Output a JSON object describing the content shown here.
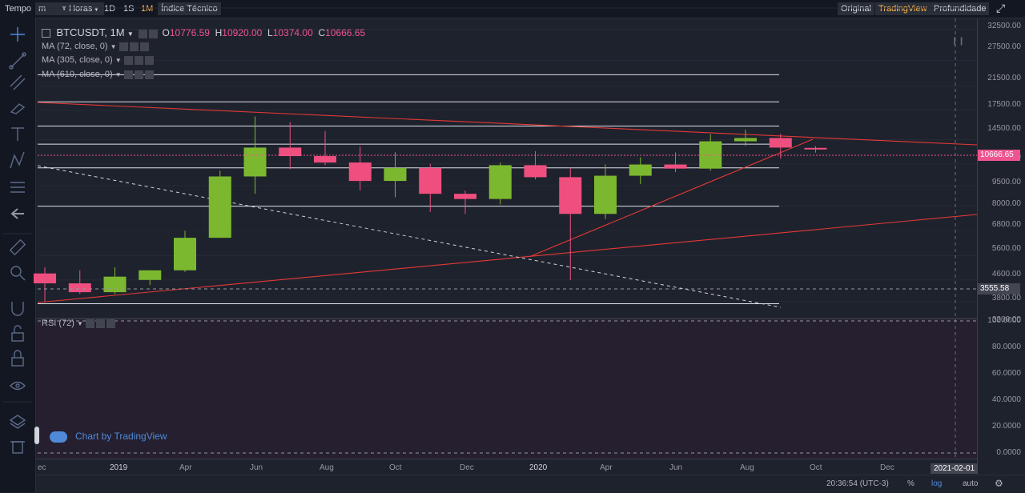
{
  "topbar": {
    "time_label": "Tempo",
    "interval_value": "m",
    "hours_label": "Horas",
    "btn_1d": "1D",
    "btn_1s": "1S",
    "btn_1m": "1M",
    "indicators_label": "Índice Técnico",
    "view_original": "Original",
    "view_tradingview": "TradingView",
    "view_depth": "Profundidade"
  },
  "legend": {
    "symbol": "BTCUSDT, 1M",
    "open_label": "O",
    "open": "10776.59",
    "high_label": "H",
    "high": "10920.00",
    "low_label": "L",
    "low": "10374.00",
    "close_label": "C",
    "close": "10666.65",
    "ma1": "MA (72, close, 0)",
    "ma2": "MA (305, close, 0)",
    "ma3": "MA (610, close, 0)",
    "rsi": "RSI (72)"
  },
  "price_axis": [
    "32500.00",
    "27500.00",
    "21500.00",
    "17500.00",
    "14500.00",
    "11500.00",
    "9500.00",
    "8000.00",
    "6800.00",
    "5600.00",
    "4600.00",
    "3800.00",
    "3200.00"
  ],
  "price_tags": {
    "current": "10666.65",
    "level": "3555.58"
  },
  "rsi_axis": [
    "100.0000",
    "80.0000",
    "60.0000",
    "40.0000",
    "20.0000",
    "0.0000"
  ],
  "time_axis": [
    "ec",
    "2019",
    "Apr",
    "Jun",
    "Aug",
    "Oct",
    "Dec",
    "2020",
    "Apr",
    "Jun",
    "Aug",
    "Oct",
    "Dec"
  ],
  "time_cursor": "2021-02-01",
  "watermark": "Chart by TradingView",
  "bottom": {
    "clock": "20:36:54 (UTC-3)",
    "percent": "%",
    "log": "log",
    "auto": "auto"
  },
  "colors": {
    "up": "#7cb82f",
    "down": "#ef4f7f",
    "trend": "#e53935",
    "accent": "#ffb74d"
  },
  "chart_data": {
    "type": "candlestick",
    "timeframe": "1M",
    "candles": [
      {
        "t": "2018-12",
        "o": 4000,
        "h": 4200,
        "l": 3200,
        "c": 3700
      },
      {
        "t": "2019-01",
        "o": 3700,
        "h": 4100,
        "l": 3400,
        "c": 3450
      },
      {
        "t": "2019-02",
        "o": 3450,
        "h": 4200,
        "l": 3400,
        "c": 3900
      },
      {
        "t": "2019-03",
        "o": 3800,
        "h": 4100,
        "l": 3650,
        "c": 4100
      },
      {
        "t": "2019-04",
        "o": 4100,
        "h": 5600,
        "l": 4050,
        "c": 5300
      },
      {
        "t": "2019-05",
        "o": 5300,
        "h": 9000,
        "l": 5300,
        "c": 8600
      },
      {
        "t": "2019-06",
        "o": 8600,
        "h": 13800,
        "l": 7500,
        "c": 10800
      },
      {
        "t": "2019-07",
        "o": 10800,
        "h": 13200,
        "l": 9100,
        "c": 10100
      },
      {
        "t": "2019-08",
        "o": 10100,
        "h": 12300,
        "l": 9400,
        "c": 9600
      },
      {
        "t": "2019-09",
        "o": 9600,
        "h": 10900,
        "l": 7700,
        "c": 8300
      },
      {
        "t": "2019-10",
        "o": 8300,
        "h": 10400,
        "l": 7300,
        "c": 9200
      },
      {
        "t": "2019-11",
        "o": 9200,
        "h": 9500,
        "l": 6500,
        "c": 7500
      },
      {
        "t": "2019-12",
        "o": 7500,
        "h": 7700,
        "l": 6400,
        "c": 7200
      },
      {
        "t": "2020-01",
        "o": 7200,
        "h": 9600,
        "l": 6900,
        "c": 9400
      },
      {
        "t": "2020-02",
        "o": 9400,
        "h": 10500,
        "l": 8400,
        "c": 8550
      },
      {
        "t": "2020-03",
        "o": 8550,
        "h": 9200,
        "l": 3800,
        "c": 6400
      },
      {
        "t": "2020-04",
        "o": 6400,
        "h": 9450,
        "l": 6150,
        "c": 8650
      },
      {
        "t": "2020-05",
        "o": 8650,
        "h": 10000,
        "l": 8100,
        "c": 9450
      },
      {
        "t": "2020-06",
        "o": 9450,
        "h": 10400,
        "l": 8900,
        "c": 9150
      },
      {
        "t": "2020-07",
        "o": 9150,
        "h": 12000,
        "l": 9000,
        "c": 11350
      },
      {
        "t": "2020-08",
        "o": 11350,
        "h": 12450,
        "l": 10950,
        "c": 11650
      },
      {
        "t": "2020-09",
        "o": 11650,
        "h": 12050,
        "l": 9900,
        "c": 10800
      },
      {
        "t": "2020-10",
        "o": 10776.59,
        "h": 10920,
        "l": 10374,
        "c": 10666.65
      }
    ],
    "horizontal_levels": [
      19200,
      15500,
      12800,
      11100,
      9200,
      6800,
      3555.58,
      3150
    ],
    "log_scale": true,
    "rsi_range": [
      0,
      100
    ]
  }
}
